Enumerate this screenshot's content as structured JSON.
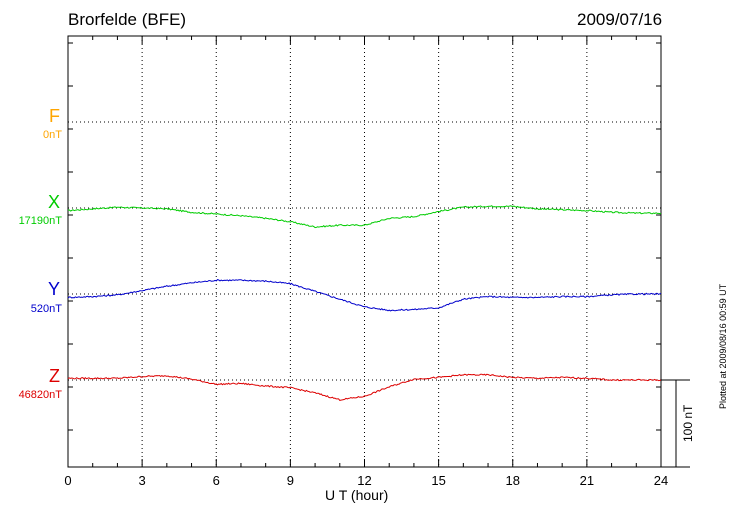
{
  "header": {
    "title": "Brorfelde (BFE)",
    "date": "2009/07/16"
  },
  "side_note": "Plotted at 2009/08/16 00:59 UT",
  "scale_label": "100 nT",
  "colors": {
    "F": "#ffa500",
    "X": "#00cc00",
    "Y": "#0000cc",
    "Z": "#dd0000",
    "axis": "#000000"
  },
  "components": [
    {
      "name": "F",
      "base": "0nT"
    },
    {
      "name": "X",
      "base": "17190nT"
    },
    {
      "name": "Y",
      "base": "520nT"
    },
    {
      "name": "Z",
      "base": "46820nT"
    }
  ],
  "chart_data": {
    "type": "line",
    "title": "Brorfelde (BFE)",
    "xlabel": "U T (hour)",
    "xlim": [
      0,
      24
    ],
    "x_ticks": [
      "0",
      "3",
      "6",
      "9",
      "12",
      "15",
      "18",
      "21",
      "24"
    ],
    "grid": true,
    "panel_height_nT": 100,
    "series": [
      {
        "name": "X",
        "baseline": "17190nT",
        "x": [
          0,
          1,
          2,
          3,
          4,
          5,
          6,
          7,
          8,
          9,
          10,
          11,
          12,
          13,
          14,
          15,
          16,
          17,
          18,
          19,
          20,
          21,
          22,
          23,
          24
        ],
        "y": [
          -3,
          -1,
          1,
          0,
          -1,
          -5,
          -7,
          -9,
          -12,
          -16,
          -22,
          -20,
          -20,
          -12,
          -10,
          -4,
          1,
          2,
          2,
          -1,
          -2,
          -3,
          -5,
          -6,
          -6
        ]
      },
      {
        "name": "Y",
        "baseline": "520nT",
        "x": [
          0,
          1,
          2,
          3,
          4,
          5,
          6,
          7,
          8,
          9,
          10,
          11,
          12,
          13,
          14,
          15,
          16,
          17,
          18,
          19,
          20,
          21,
          22,
          23,
          24
        ],
        "y": [
          -4,
          -3,
          -1,
          4,
          9,
          13,
          16,
          16,
          15,
          12,
          3,
          -6,
          -15,
          -19,
          -18,
          -16,
          -6,
          -3,
          -4,
          -4,
          -3,
          -3,
          -1,
          0,
          0
        ]
      },
      {
        "name": "Z",
        "baseline": "46820nT",
        "x": [
          0,
          1,
          2,
          3,
          4,
          5,
          6,
          7,
          8,
          9,
          10,
          11,
          12,
          13,
          14,
          15,
          16,
          17,
          18,
          19,
          20,
          21,
          22,
          23,
          24
        ],
        "y": [
          2,
          2,
          2,
          4,
          5,
          1,
          -5,
          -4,
          -7,
          -9,
          -15,
          -23,
          -19,
          -8,
          1,
          3,
          6,
          6,
          3,
          2,
          3,
          2,
          0,
          0,
          0
        ]
      }
    ]
  }
}
